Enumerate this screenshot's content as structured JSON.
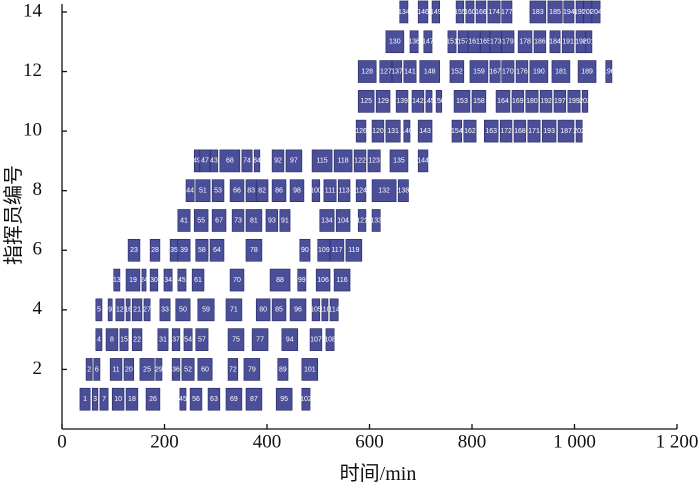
{
  "chart_data": {
    "type": "gantt",
    "xlabel": "时间/min",
    "ylabel": "指挥员编号",
    "xlim": [
      0,
      1200
    ],
    "xticks": [
      0,
      200,
      400,
      600,
      800,
      {
        "value": 1000,
        "label": "1 000"
      },
      {
        "value": 1200,
        "label": "1 200"
      }
    ],
    "ylim": [
      0,
      14.2
    ],
    "yticks": [
      2,
      4,
      6,
      8,
      10,
      12,
      14
    ],
    "color": "#4b4f99",
    "tasks": [
      {
        "label": "1",
        "row": 1,
        "start": 35,
        "end": 55
      },
      {
        "label": "3",
        "row": 1,
        "start": 59,
        "end": 70
      },
      {
        "label": "7",
        "row": 1,
        "start": 74,
        "end": 90
      },
      {
        "label": "10",
        "row": 1,
        "start": 98,
        "end": 121
      },
      {
        "label": "18",
        "row": 1,
        "start": 125,
        "end": 148
      },
      {
        "label": "26",
        "row": 1,
        "start": 164,
        "end": 191
      },
      {
        "label": "45",
        "row": 1,
        "start": 230,
        "end": 242
      },
      {
        "label": "56",
        "row": 1,
        "start": 250,
        "end": 273
      },
      {
        "label": "63",
        "row": 1,
        "start": 285,
        "end": 308
      },
      {
        "label": "69",
        "row": 1,
        "start": 320,
        "end": 351
      },
      {
        "label": "87",
        "row": 1,
        "start": 359,
        "end": 390
      },
      {
        "label": "95",
        "row": 1,
        "start": 418,
        "end": 449
      },
      {
        "label": "102",
        "row": 1,
        "start": 468,
        "end": 484
      },
      {
        "label": "2",
        "row": 2,
        "start": 47,
        "end": 59
      },
      {
        "label": "6",
        "row": 2,
        "start": 62,
        "end": 74
      },
      {
        "label": "11",
        "row": 2,
        "start": 94,
        "end": 117
      },
      {
        "label": "20",
        "row": 2,
        "start": 121,
        "end": 140
      },
      {
        "label": "25",
        "row": 2,
        "start": 152,
        "end": 180
      },
      {
        "label": "29",
        "row": 2,
        "start": 183,
        "end": 195
      },
      {
        "label": "36",
        "row": 2,
        "start": 215,
        "end": 230
      },
      {
        "label": "52",
        "row": 2,
        "start": 234,
        "end": 258
      },
      {
        "label": "60",
        "row": 2,
        "start": 265,
        "end": 293
      },
      {
        "label": "72",
        "row": 2,
        "start": 324,
        "end": 343
      },
      {
        "label": "79",
        "row": 2,
        "start": 355,
        "end": 386
      },
      {
        "label": "89",
        "row": 2,
        "start": 421,
        "end": 441
      },
      {
        "label": "101",
        "row": 2,
        "start": 468,
        "end": 499
      },
      {
        "label": "4",
        "row": 3,
        "start": 66,
        "end": 78
      },
      {
        "label": "8",
        "row": 3,
        "start": 86,
        "end": 109
      },
      {
        "label": "15",
        "row": 3,
        "start": 113,
        "end": 129
      },
      {
        "label": "22",
        "row": 3,
        "start": 137,
        "end": 156
      },
      {
        "label": "31",
        "row": 3,
        "start": 187,
        "end": 207
      },
      {
        "label": "37",
        "row": 3,
        "start": 215,
        "end": 230
      },
      {
        "label": "54",
        "row": 3,
        "start": 238,
        "end": 254
      },
      {
        "label": "57",
        "row": 3,
        "start": 261,
        "end": 285
      },
      {
        "label": "75",
        "row": 3,
        "start": 324,
        "end": 355
      },
      {
        "label": "77",
        "row": 3,
        "start": 371,
        "end": 402
      },
      {
        "label": "94",
        "row": 3,
        "start": 429,
        "end": 460
      },
      {
        "label": "107",
        "row": 3,
        "start": 484,
        "end": 507
      },
      {
        "label": "108",
        "row": 3,
        "start": 515,
        "end": 531
      },
      {
        "label": "5",
        "row": 4,
        "start": 66,
        "end": 78
      },
      {
        "label": "9",
        "row": 4,
        "start": 90,
        "end": 98
      },
      {
        "label": "12",
        "row": 4,
        "start": 105,
        "end": 121
      },
      {
        "label": "16",
        "row": 4,
        "start": 125,
        "end": 133
      },
      {
        "label": "21",
        "row": 4,
        "start": 137,
        "end": 156
      },
      {
        "label": "27",
        "row": 4,
        "start": 160,
        "end": 172
      },
      {
        "label": "33",
        "row": 4,
        "start": 191,
        "end": 211
      },
      {
        "label": "50",
        "row": 4,
        "start": 222,
        "end": 250
      },
      {
        "label": "59",
        "row": 4,
        "start": 265,
        "end": 297
      },
      {
        "label": "71",
        "row": 4,
        "start": 320,
        "end": 351
      },
      {
        "label": "80",
        "row": 4,
        "start": 379,
        "end": 406
      },
      {
        "label": "85",
        "row": 4,
        "start": 410,
        "end": 437
      },
      {
        "label": "96",
        "row": 4,
        "start": 445,
        "end": 476
      },
      {
        "label": "105",
        "row": 4,
        "start": 488,
        "end": 503
      },
      {
        "label": "110",
        "row": 4,
        "start": 507,
        "end": 519
      },
      {
        "label": "114",
        "row": 4,
        "start": 523,
        "end": 539
      },
      {
        "label": "13",
        "row": 5,
        "start": 101,
        "end": 113
      },
      {
        "label": "19",
        "row": 5,
        "start": 125,
        "end": 152
      },
      {
        "label": "24",
        "row": 5,
        "start": 156,
        "end": 164
      },
      {
        "label": "30",
        "row": 5,
        "start": 172,
        "end": 187
      },
      {
        "label": "34",
        "row": 5,
        "start": 199,
        "end": 215
      },
      {
        "label": "45",
        "row": 5,
        "start": 226,
        "end": 242
      },
      {
        "label": "61",
        "row": 5,
        "start": 254,
        "end": 277
      },
      {
        "label": "70",
        "row": 5,
        "start": 328,
        "end": 355
      },
      {
        "label": "88",
        "row": 5,
        "start": 406,
        "end": 445
      },
      {
        "label": "99",
        "row": 5,
        "start": 460,
        "end": 476
      },
      {
        "label": "106",
        "row": 5,
        "start": 496,
        "end": 523
      },
      {
        "label": "116",
        "row": 5,
        "start": 531,
        "end": 562
      },
      {
        "label": "23",
        "row": 6,
        "start": 129,
        "end": 152
      },
      {
        "label": "28",
        "row": 6,
        "start": 172,
        "end": 191
      },
      {
        "label": "35",
        "row": 6,
        "start": 211,
        "end": 226
      },
      {
        "label": "39",
        "row": 6,
        "start": 226,
        "end": 250
      },
      {
        "label": "58",
        "row": 6,
        "start": 261,
        "end": 285
      },
      {
        "label": "64",
        "row": 6,
        "start": 289,
        "end": 316
      },
      {
        "label": "78",
        "row": 6,
        "start": 359,
        "end": 390
      },
      {
        "label": "90",
        "row": 6,
        "start": 464,
        "end": 484
      },
      {
        "label": "109",
        "row": 6,
        "start": 499,
        "end": 523
      },
      {
        "label": "117",
        "row": 6,
        "start": 523,
        "end": 550
      },
      {
        "label": "119",
        "row": 6,
        "start": 554,
        "end": 585
      },
      {
        "label": "41",
        "row": 7,
        "start": 226,
        "end": 250
      },
      {
        "label": "55",
        "row": 7,
        "start": 258,
        "end": 285
      },
      {
        "label": "67",
        "row": 7,
        "start": 293,
        "end": 320
      },
      {
        "label": "73",
        "row": 7,
        "start": 332,
        "end": 355
      },
      {
        "label": "81",
        "row": 7,
        "start": 359,
        "end": 390
      },
      {
        "label": "93",
        "row": 7,
        "start": 398,
        "end": 421
      },
      {
        "label": "91",
        "row": 7,
        "start": 425,
        "end": 445
      },
      {
        "label": "134",
        "row": 7,
        "start": 503,
        "end": 531
      },
      {
        "label": "104",
        "row": 7,
        "start": 535,
        "end": 562
      },
      {
        "label": "121",
        "row": 7,
        "start": 578,
        "end": 593
      },
      {
        "label": "133",
        "row": 7,
        "start": 605,
        "end": 621
      },
      {
        "label": "44",
        "row": 8,
        "start": 242,
        "end": 258
      },
      {
        "label": "51",
        "row": 8,
        "start": 261,
        "end": 289
      },
      {
        "label": "53",
        "row": 8,
        "start": 293,
        "end": 316
      },
      {
        "label": "66",
        "row": 8,
        "start": 328,
        "end": 355
      },
      {
        "label": "83",
        "row": 8,
        "start": 359,
        "end": 379
      },
      {
        "label": "82",
        "row": 8,
        "start": 379,
        "end": 402
      },
      {
        "label": "86",
        "row": 8,
        "start": 410,
        "end": 437
      },
      {
        "label": "98",
        "row": 8,
        "start": 445,
        "end": 472
      },
      {
        "label": "100",
        "row": 8,
        "start": 488,
        "end": 503
      },
      {
        "label": "111",
        "row": 8,
        "start": 511,
        "end": 535
      },
      {
        "label": "113",
        "row": 8,
        "start": 539,
        "end": 562
      },
      {
        "label": "124",
        "row": 8,
        "start": 574,
        "end": 593
      },
      {
        "label": "132",
        "row": 8,
        "start": 605,
        "end": 652
      },
      {
        "label": "138",
        "row": 8,
        "start": 656,
        "end": 676
      },
      {
        "label": "49",
        "row": 9,
        "start": 258,
        "end": 269
      },
      {
        "label": "47",
        "row": 9,
        "start": 269,
        "end": 289
      },
      {
        "label": "43",
        "row": 9,
        "start": 289,
        "end": 304
      },
      {
        "label": "68",
        "row": 9,
        "start": 308,
        "end": 347
      },
      {
        "label": "74",
        "row": 9,
        "start": 351,
        "end": 371
      },
      {
        "label": "84",
        "row": 9,
        "start": 375,
        "end": 386
      },
      {
        "label": "92",
        "row": 9,
        "start": 410,
        "end": 433
      },
      {
        "label": "97",
        "row": 9,
        "start": 437,
        "end": 468
      },
      {
        "label": "115",
        "row": 9,
        "start": 488,
        "end": 527
      },
      {
        "label": "118",
        "row": 9,
        "start": 531,
        "end": 566
      },
      {
        "label": "122",
        "row": 9,
        "start": 570,
        "end": 593
      },
      {
        "label": "123",
        "row": 9,
        "start": 597,
        "end": 621
      },
      {
        "label": "135",
        "row": 9,
        "start": 640,
        "end": 675
      },
      {
        "label": "144",
        "row": 9,
        "start": 695,
        "end": 714
      },
      {
        "label": "126",
        "row": 10,
        "start": 574,
        "end": 593
      },
      {
        "label": "120",
        "row": 10,
        "start": 605,
        "end": 628
      },
      {
        "label": "131",
        "row": 10,
        "start": 632,
        "end": 660
      },
      {
        "label": "140",
        "row": 10,
        "start": 667,
        "end": 679
      },
      {
        "label": "143",
        "row": 10,
        "start": 695,
        "end": 722
      },
      {
        "label": "154",
        "row": 10,
        "start": 761,
        "end": 780
      },
      {
        "label": "162",
        "row": 10,
        "start": 784,
        "end": 808
      },
      {
        "label": "163",
        "row": 10,
        "start": 824,
        "end": 851
      },
      {
        "label": "172",
        "row": 10,
        "start": 855,
        "end": 878
      },
      {
        "label": "168",
        "row": 10,
        "start": 882,
        "end": 905
      },
      {
        "label": "171",
        "row": 10,
        "start": 909,
        "end": 933
      },
      {
        "label": "193",
        "row": 10,
        "start": 937,
        "end": 964
      },
      {
        "label": "187",
        "row": 10,
        "start": 968,
        "end": 999
      },
      {
        "label": "202",
        "row": 10,
        "start": 1003,
        "end": 1015
      },
      {
        "label": "125",
        "row": 11,
        "start": 578,
        "end": 609
      },
      {
        "label": "129",
        "row": 11,
        "start": 613,
        "end": 640
      },
      {
        "label": "139",
        "row": 11,
        "start": 652,
        "end": 675
      },
      {
        "label": "142",
        "row": 11,
        "start": 683,
        "end": 706
      },
      {
        "label": "145",
        "row": 11,
        "start": 710,
        "end": 722
      },
      {
        "label": "150",
        "row": 11,
        "start": 730,
        "end": 741
      },
      {
        "label": "153",
        "row": 11,
        "start": 765,
        "end": 796
      },
      {
        "label": "158",
        "row": 11,
        "start": 800,
        "end": 827
      },
      {
        "label": "164",
        "row": 11,
        "start": 847,
        "end": 874
      },
      {
        "label": "169",
        "row": 11,
        "start": 878,
        "end": 901
      },
      {
        "label": "180",
        "row": 11,
        "start": 905,
        "end": 929
      },
      {
        "label": "192",
        "row": 11,
        "start": 933,
        "end": 956
      },
      {
        "label": "197",
        "row": 11,
        "start": 960,
        "end": 983
      },
      {
        "label": "199",
        "row": 11,
        "start": 987,
        "end": 1011
      },
      {
        "label": "203",
        "row": 11,
        "start": 1015,
        "end": 1026
      },
      {
        "label": "128",
        "row": 12,
        "start": 578,
        "end": 613
      },
      {
        "label": "127",
        "row": 12,
        "start": 620,
        "end": 644
      },
      {
        "label": "137",
        "row": 12,
        "start": 644,
        "end": 663
      },
      {
        "label": "141",
        "row": 12,
        "start": 667,
        "end": 691
      },
      {
        "label": "148",
        "row": 12,
        "start": 698,
        "end": 737
      },
      {
        "label": "152",
        "row": 12,
        "start": 757,
        "end": 784
      },
      {
        "label": "159",
        "row": 12,
        "start": 796,
        "end": 831
      },
      {
        "label": "167",
        "row": 12,
        "start": 835,
        "end": 855
      },
      {
        "label": "170",
        "row": 12,
        "start": 858,
        "end": 882
      },
      {
        "label": "176",
        "row": 12,
        "start": 886,
        "end": 909
      },
      {
        "label": "190",
        "row": 12,
        "start": 913,
        "end": 948
      },
      {
        "label": "181",
        "row": 12,
        "start": 956,
        "end": 991
      },
      {
        "label": "189",
        "row": 12,
        "start": 1007,
        "end": 1042
      },
      {
        "label": "196",
        "row": 12,
        "start": 1061,
        "end": 1073
      },
      {
        "label": "130",
        "row": 13,
        "start": 632,
        "end": 667
      },
      {
        "label": "136",
        "row": 13,
        "start": 679,
        "end": 695
      },
      {
        "label": "147",
        "row": 13,
        "start": 706,
        "end": 722
      },
      {
        "label": "151",
        "row": 13,
        "start": 753,
        "end": 769
      },
      {
        "label": "157",
        "row": 13,
        "start": 773,
        "end": 792
      },
      {
        "label": "161",
        "row": 13,
        "start": 792,
        "end": 816
      },
      {
        "label": "165",
        "row": 13,
        "start": 816,
        "end": 835
      },
      {
        "label": "173",
        "row": 13,
        "start": 835,
        "end": 858
      },
      {
        "label": "179",
        "row": 13,
        "start": 858,
        "end": 882
      },
      {
        "label": "178",
        "row": 13,
        "start": 890,
        "end": 917
      },
      {
        "label": "186",
        "row": 13,
        "start": 921,
        "end": 944
      },
      {
        "label": "184",
        "row": 13,
        "start": 952,
        "end": 972
      },
      {
        "label": "191",
        "row": 13,
        "start": 976,
        "end": 999
      },
      {
        "label": "198",
        "row": 13,
        "start": 1003,
        "end": 1022
      },
      {
        "label": "201",
        "row": 13,
        "start": 1022,
        "end": 1034
      },
      {
        "label": "134",
        "row": 14,
        "start": 659,
        "end": 675
      },
      {
        "label": "146",
        "row": 14,
        "start": 695,
        "end": 714
      },
      {
        "label": "149",
        "row": 14,
        "start": 722,
        "end": 737
      },
      {
        "label": "155",
        "row": 14,
        "start": 769,
        "end": 784
      },
      {
        "label": "160",
        "row": 14,
        "start": 788,
        "end": 804
      },
      {
        "label": "166",
        "row": 14,
        "start": 808,
        "end": 827
      },
      {
        "label": "174",
        "row": 14,
        "start": 831,
        "end": 855
      },
      {
        "label": "177",
        "row": 14,
        "start": 858,
        "end": 878
      },
      {
        "label": "183",
        "row": 14,
        "start": 913,
        "end": 944
      },
      {
        "label": "185",
        "row": 14,
        "start": 948,
        "end": 976
      },
      {
        "label": "194",
        "row": 14,
        "start": 979,
        "end": 999
      },
      {
        "label": "195",
        "row": 14,
        "start": 1003,
        "end": 1018
      },
      {
        "label": "200",
        "row": 14,
        "start": 1018,
        "end": 1034
      },
      {
        "label": "204",
        "row": 14,
        "start": 1034,
        "end": 1050
      }
    ]
  }
}
